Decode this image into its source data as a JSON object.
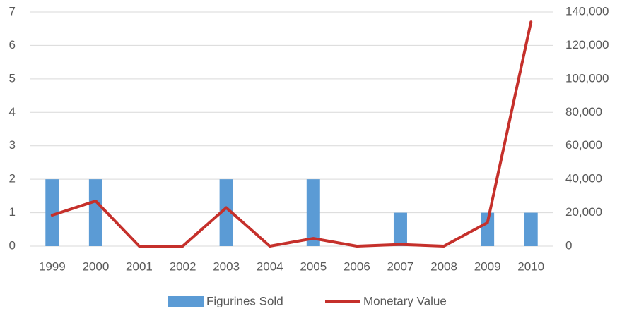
{
  "chart_data": {
    "type": "bar_line",
    "categories": [
      "1999",
      "2000",
      "2001",
      "2002",
      "2003",
      "2004",
      "2005",
      "2006",
      "2007",
      "2008",
      "2009",
      "2010"
    ],
    "series": [
      {
        "name": "Figurines Sold",
        "color": "#5b9bd5",
        "type": "bar",
        "axis": "y",
        "values": [
          2,
          2,
          0,
          0,
          2,
          0,
          2,
          0,
          1,
          0,
          1,
          1
        ]
      },
      {
        "name": "Monetary Value",
        "color": "#c5302b",
        "type": "line",
        "axis": "y2",
        "values": [
          18500,
          27000,
          0,
          0,
          23000,
          0,
          4600,
          0,
          1000,
          0,
          14000,
          134000
        ]
      }
    ],
    "ylim": [
      0,
      7
    ],
    "yticks": [
      0,
      1,
      2,
      3,
      4,
      5,
      6,
      7
    ],
    "y2lim": [
      0,
      140000
    ],
    "y2ticks": [
      0,
      {
        "value": 20000,
        "label": "20,000"
      },
      {
        "value": 40000,
        "label": "40,000"
      },
      {
        "value": 60000,
        "label": "60,000"
      },
      {
        "value": 80000,
        "label": "80,000"
      },
      {
        "value": 100000,
        "label": "100,000"
      },
      {
        "value": 120000,
        "label": "120,000"
      },
      {
        "value": 140000,
        "label": "140,000"
      }
    ],
    "grid": true,
    "legend": "bottom"
  }
}
